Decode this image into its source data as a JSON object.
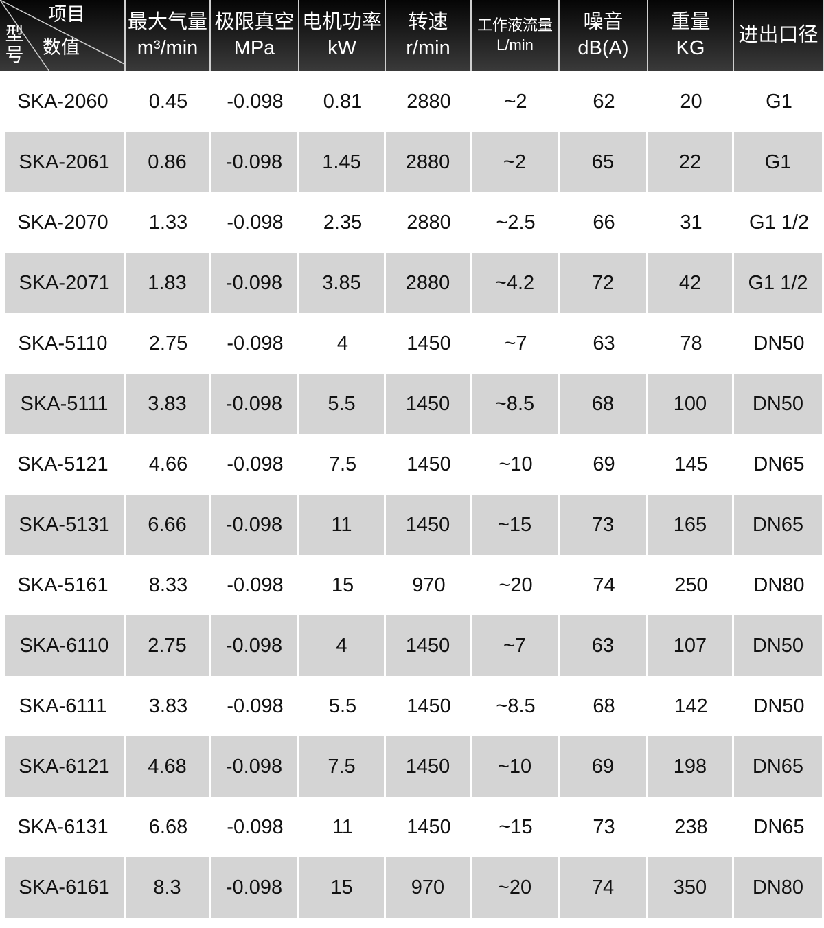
{
  "header": {
    "corner": {
      "item": "项目",
      "value": "数值",
      "model": "型号"
    },
    "columns": [
      {
        "name": "最大气量",
        "unit": "m³/min"
      },
      {
        "name": "极限真空",
        "unit": "MPa"
      },
      {
        "name": "电机功率",
        "unit": "kW"
      },
      {
        "name": "转速",
        "unit": "r/min"
      },
      {
        "name": "工作液流量",
        "unit": "L/min"
      },
      {
        "name": "噪音",
        "unit": "dB(A)"
      },
      {
        "name": "重量",
        "unit": "KG"
      },
      {
        "name": "进出口径",
        "unit": ""
      }
    ]
  },
  "rows": [
    [
      "SKA-2060",
      "0.45",
      "-0.098",
      "0.81",
      "2880",
      "~2",
      "62",
      "20",
      "G1"
    ],
    [
      "SKA-2061",
      "0.86",
      "-0.098",
      "1.45",
      "2880",
      "~2",
      "65",
      "22",
      "G1"
    ],
    [
      "SKA-2070",
      "1.33",
      "-0.098",
      "2.35",
      "2880",
      "~2.5",
      "66",
      "31",
      "G1 1/2"
    ],
    [
      "SKA-2071",
      "1.83",
      "-0.098",
      "3.85",
      "2880",
      "~4.2",
      "72",
      "42",
      "G1 1/2"
    ],
    [
      "SKA-5110",
      "2.75",
      "-0.098",
      "4",
      "1450",
      "~7",
      "63",
      "78",
      "DN50"
    ],
    [
      "SKA-5111",
      "3.83",
      "-0.098",
      "5.5",
      "1450",
      "~8.5",
      "68",
      "100",
      "DN50"
    ],
    [
      "SKA-5121",
      "4.66",
      "-0.098",
      "7.5",
      "1450",
      "~10",
      "69",
      "145",
      "DN65"
    ],
    [
      "SKA-5131",
      "6.66",
      "-0.098",
      "11",
      "1450",
      "~15",
      "73",
      "165",
      "DN65"
    ],
    [
      "SKA-5161",
      "8.33",
      "-0.098",
      "15",
      "970",
      "~20",
      "74",
      "250",
      "DN80"
    ],
    [
      "SKA-6110",
      "2.75",
      "-0.098",
      "4",
      "1450",
      "~7",
      "63",
      "107",
      "DN50"
    ],
    [
      "SKA-6111",
      "3.83",
      "-0.098",
      "5.5",
      "1450",
      "~8.5",
      "68",
      "142",
      "DN50"
    ],
    [
      "SKA-6121",
      "4.68",
      "-0.098",
      "7.5",
      "1450",
      "~10",
      "69",
      "198",
      "DN65"
    ],
    [
      "SKA-6131",
      "6.68",
      "-0.098",
      "11",
      "1450",
      "~15",
      "73",
      "238",
      "DN65"
    ],
    [
      "SKA-6161",
      "8.3",
      "-0.098",
      "15",
      "970",
      "~20",
      "74",
      "350",
      "DN80"
    ]
  ],
  "colors": {
    "header_bg": "#1a1a1a",
    "alt_row": "#d4d4d4"
  }
}
